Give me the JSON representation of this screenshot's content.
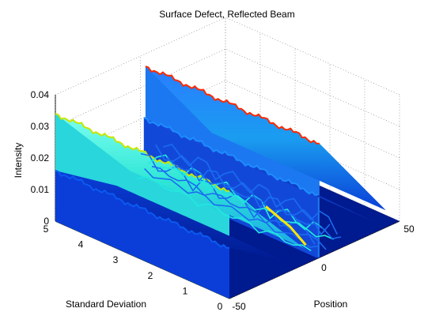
{
  "chart_data": {
    "type": "surface",
    "title": "Surface Defect, Reflected Beam",
    "xlabel": "Standard Deviation",
    "ylabel": "Position",
    "zlabel": "Intensity",
    "x_ticks": [
      "0",
      "1",
      "2",
      "3",
      "4",
      "5"
    ],
    "y_ticks": [
      "-50",
      "0",
      "50"
    ],
    "z_ticks": [
      "0",
      "0.01",
      "0.02",
      "0.03",
      "0.04"
    ],
    "xlim": [
      0,
      5
    ],
    "ylim": [
      -50,
      50
    ],
    "zlim": [
      0,
      0.04
    ],
    "grid": true,
    "colormap": "jet",
    "ridges": [
      {
        "std_from": 0,
        "std_to": 5,
        "position_from": -50,
        "position_to": 0,
        "plateau": 0.034,
        "peak": 0.036
      },
      {
        "std_from": 0,
        "std_to": 5,
        "position_from": 0,
        "position_to": 50,
        "plateau": 0.036,
        "peak": 0.04
      },
      {
        "std_from": 0,
        "std_to": 5,
        "position_from": -50,
        "position_to": 0,
        "plateau": 0.016,
        "peak": 0.017
      },
      {
        "std_from": 0,
        "std_to": 5,
        "position_from": 0,
        "position_to": 50,
        "plateau": 0.02,
        "peak": 0.022
      }
    ],
    "colors": {
      "red": "#ff2a00",
      "cyan": "#22e8e0",
      "blue": "#0a2fd8",
      "darkblue": "#001a8f",
      "yellow": "#ffe600"
    }
  }
}
